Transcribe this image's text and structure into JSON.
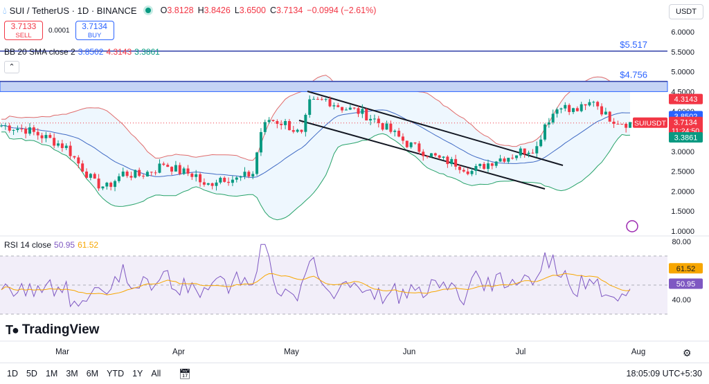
{
  "header": {
    "symbol": "SUI / TetherUS · 1D · BINANCE",
    "o_label": "O",
    "o_value": "3.8128",
    "h_label": "H",
    "h_value": "3.8426",
    "l_label": "L",
    "l_value": "3.6500",
    "c_label": "C",
    "c_value": "3.7134",
    "change": "−0.0994 (−2.61%)"
  },
  "trade": {
    "sell_price": "3.7133",
    "sell_label": "SELL",
    "spread": "0.0001",
    "buy_price": "3.7134",
    "buy_label": "BUY"
  },
  "bb_legend": {
    "label": "BB 20 SMA close 2",
    "basis": "3.8502",
    "upper": "4.3143",
    "lower": "3.3861"
  },
  "rsi_legend": {
    "label": "RSI 14 close",
    "rsi": "50.95",
    "ma": "61.52"
  },
  "currency_button": "USDT",
  "watermark": "TradingView",
  "toolbar": {
    "timeframes": [
      "1D",
      "5D",
      "1M",
      "3M",
      "6M",
      "YTD",
      "1Y",
      "All"
    ],
    "clock": "18:05:09 UTC+5:30"
  },
  "chart_data": {
    "type": "line",
    "price_axis": {
      "ticks": [
        "6.0000",
        "5.5000",
        "5.0000",
        "4.5000",
        "4.0000",
        "3.5000",
        "3.0000",
        "2.5000",
        "2.0000",
        "1.5000",
        "1.0000"
      ],
      "ylim": [
        1.0,
        6.0
      ]
    },
    "x_ticks": [
      "Mar",
      "Apr",
      "May",
      "Jun",
      "Jul",
      "Aug"
    ],
    "levels": [
      {
        "label": "$5.517",
        "value": 5.517
      },
      {
        "label": "$4.756",
        "value": 4.756
      }
    ],
    "zone": {
      "from": 4.5,
      "to": 4.756
    },
    "price_tags": [
      {
        "label": "4.3143",
        "value": 4.3143,
        "color": "#f23645"
      },
      {
        "label": "3.8502",
        "value": 3.8502,
        "color": "#2962ff"
      },
      {
        "label": "SUIUSDT",
        "value": 3.7134,
        "color": "#f23645"
      },
      {
        "label": "3.7134",
        "value": 3.7134,
        "color": "#f23645"
      },
      {
        "label": "11:24:50",
        "value": 3.7134,
        "color": "#f23645"
      },
      {
        "label": "3.3861",
        "value": 3.3861,
        "color": "#089981"
      }
    ],
    "rsi_axis": {
      "ticks": [
        "80.00",
        "40.00"
      ],
      "ylim": [
        20,
        80
      ]
    },
    "rsi_tags": [
      {
        "label": "61.52",
        "value": 61.52,
        "color": "#f7a600"
      },
      {
        "label": "50.95",
        "value": 50.95,
        "color": "#7e57c2"
      }
    ]
  }
}
